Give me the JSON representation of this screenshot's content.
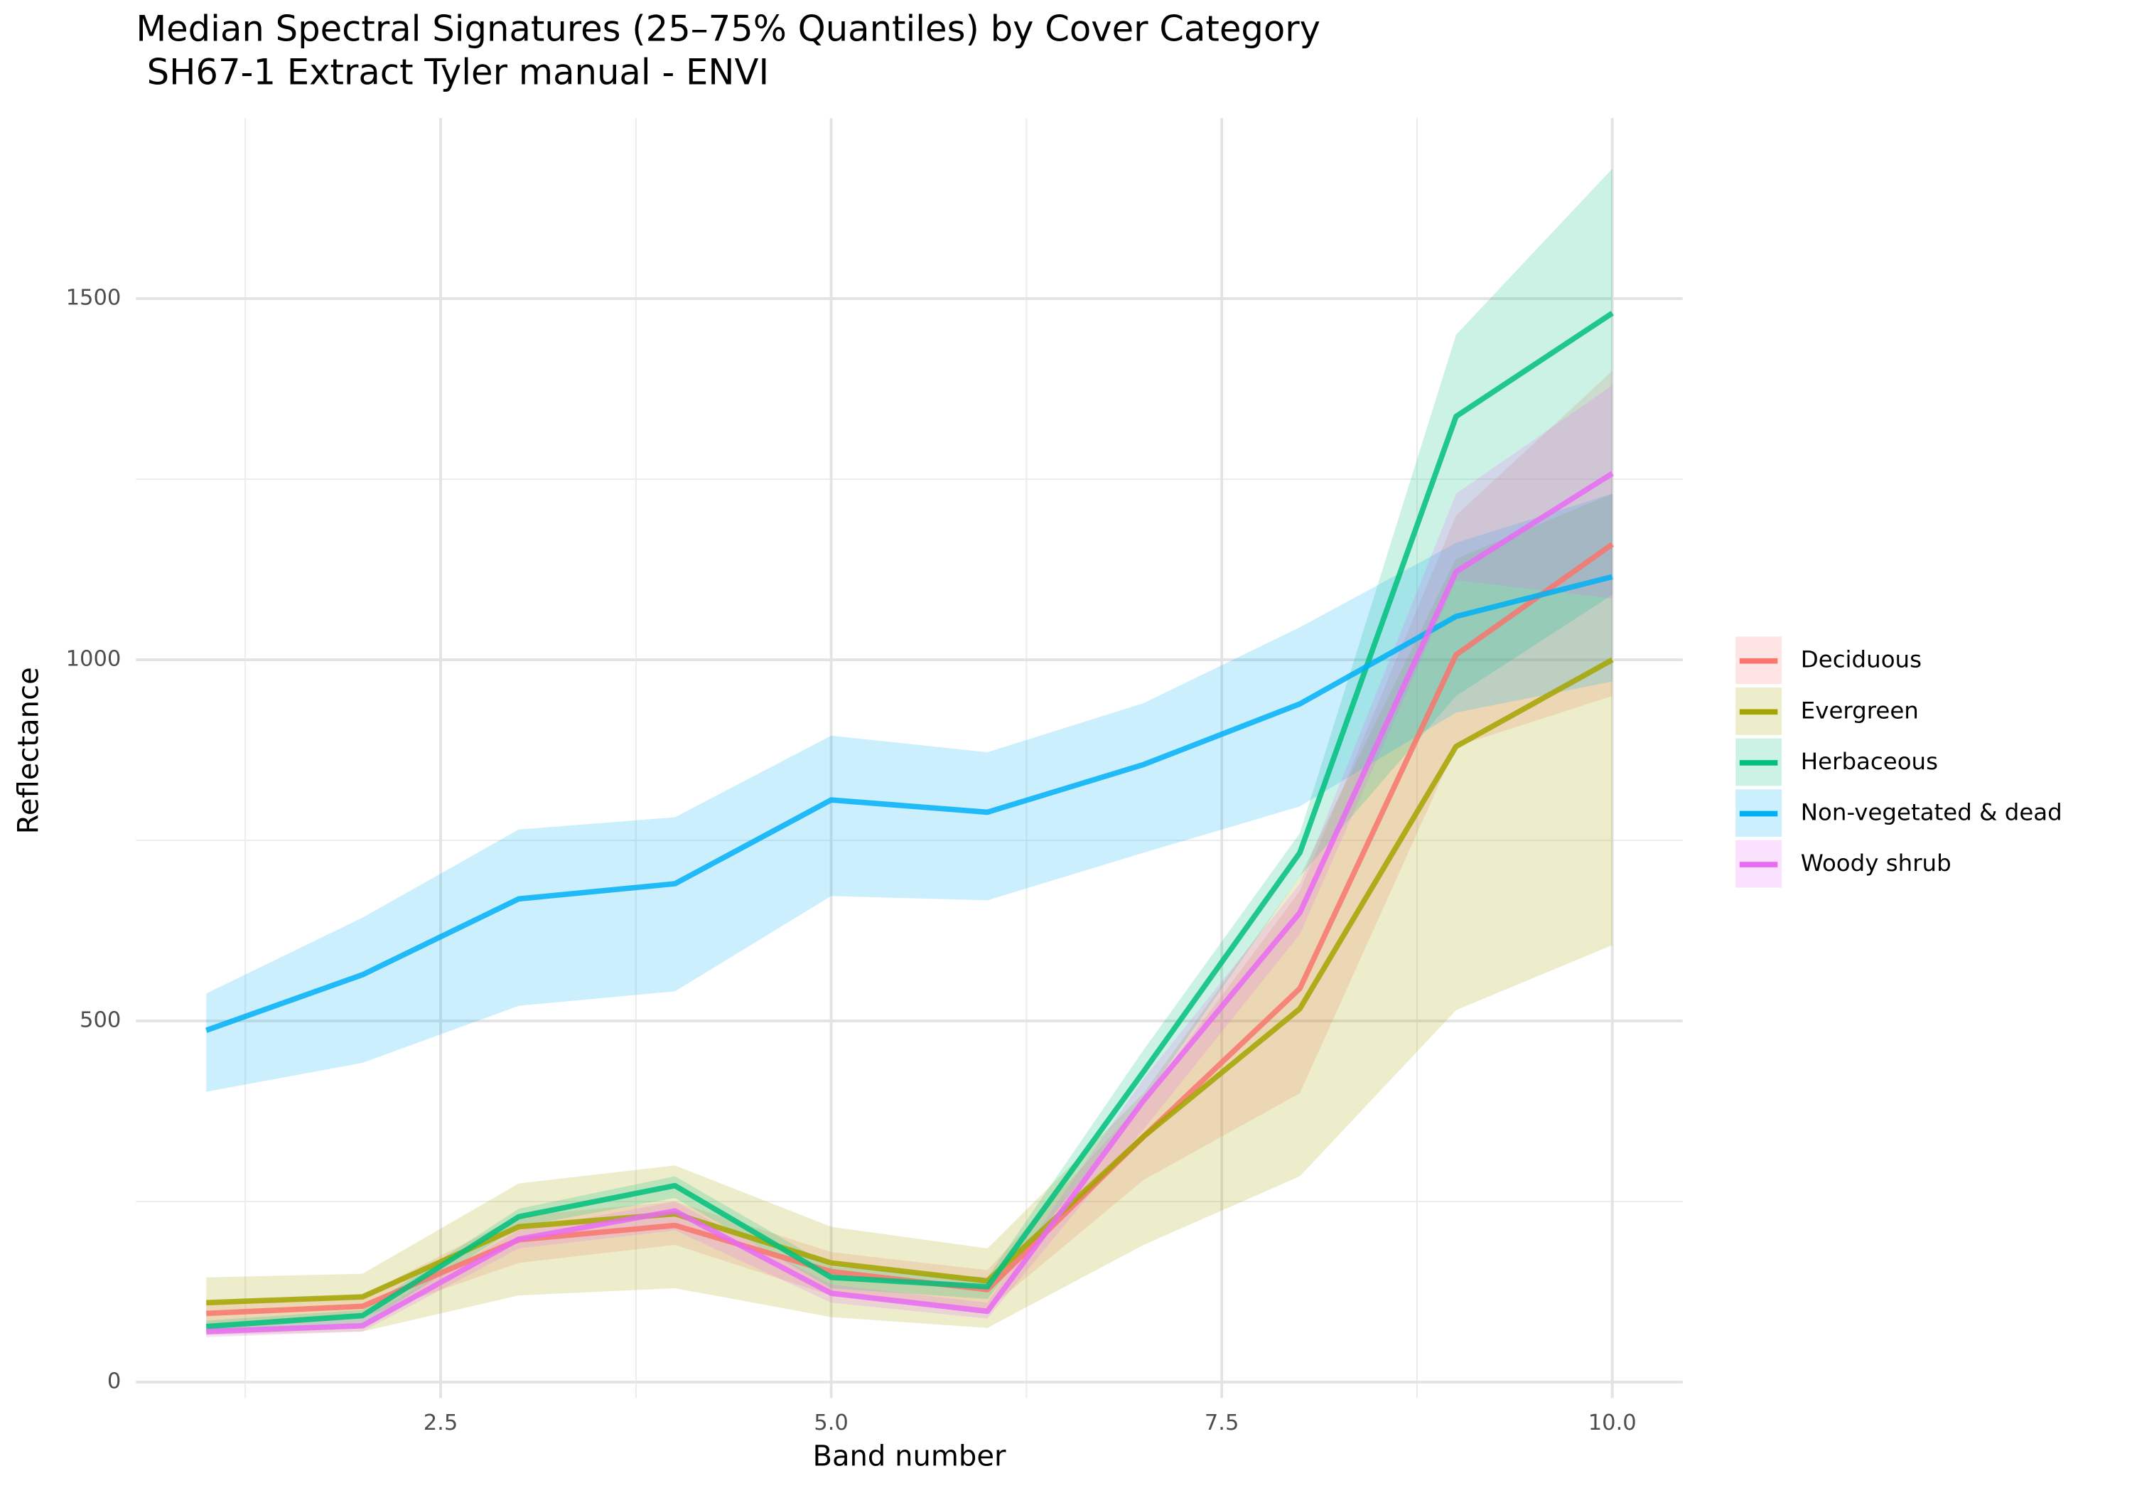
{
  "chart_data": {
    "type": "ribbon-line",
    "title": "Median Spectral Signatures (25–75% Quantiles) by Cover Category",
    "subtitle": "SH67-1 Extract Tyler manual - ENVI",
    "x_label": "Band number",
    "y_label": "Reflectance",
    "x": [
      1,
      2,
      3,
      4,
      5,
      6,
      7,
      8,
      9,
      10
    ],
    "xlim": [
      0.55,
      10.45
    ],
    "ylim": [
      -22,
      1750
    ],
    "xticks": [
      2.5,
      {
        "value": 5,
        "label": "5.0"
      },
      7.5,
      {
        "value": 10,
        "label": "10.0"
      }
    ],
    "yticks": [
      0,
      500,
      1000,
      1500
    ],
    "x_minor_ticks": [
      1.25,
      3.75,
      6.25,
      8.75
    ],
    "y_minor_ticks": [
      250,
      750,
      1250
    ],
    "grid": true,
    "legend_position": "right",
    "series": [
      {
        "name": "Deciduous",
        "color": "#F8766D",
        "values": [
          95,
          105,
          197,
          217,
          153,
          128,
          340,
          545,
          1007,
          1160
        ],
        "lower": [
          80,
          90,
          165,
          190,
          120,
          100,
          280,
          400,
          880,
          950
        ],
        "upper": [
          110,
          120,
          230,
          250,
          180,
          155,
          390,
          680,
          1200,
          1400
        ]
      },
      {
        "name": "Evergreen",
        "color": "#A3A500",
        "values": [
          110,
          118,
          215,
          233,
          165,
          140,
          340,
          517,
          880,
          1000
        ],
        "lower": [
          65,
          70,
          120,
          130,
          90,
          75,
          190,
          285,
          515,
          605
        ],
        "upper": [
          145,
          150,
          275,
          300,
          215,
          185,
          400,
          700,
          1140,
          1230
        ]
      },
      {
        "name": "Herbaceous",
        "color": "#00BF7D",
        "values": [
          77,
          92,
          229,
          272,
          145,
          132,
          430,
          733,
          1337,
          1480
        ],
        "lower": [
          70,
          80,
          215,
          255,
          130,
          115,
          390,
          700,
          950,
          1090
        ],
        "upper": [
          85,
          100,
          240,
          285,
          160,
          145,
          460,
          760,
          1450,
          1680
        ]
      },
      {
        "name": "Non-vegetated & dead",
        "color": "#00B0F6",
        "values": [
          487,
          564,
          669,
          690,
          806,
          789,
          855,
          939,
          1060,
          1115
        ],
        "lower": [
          402,
          442,
          521,
          541,
          673,
          667,
          733,
          797,
          927,
          970
        ],
        "upper": [
          538,
          643,
          765,
          782,
          895,
          872,
          940,
          1045,
          1162,
          1230
        ]
      },
      {
        "name": "Woody shrub",
        "color": "#E76BF3",
        "values": [
          70,
          78,
          198,
          237,
          123,
          98,
          390,
          650,
          1122,
          1258
        ],
        "lower": [
          62,
          70,
          185,
          210,
          110,
          88,
          350,
          620,
          1110,
          1085
        ],
        "upper": [
          80,
          88,
          210,
          250,
          135,
          110,
          420,
          690,
          1230,
          1380
        ]
      }
    ]
  }
}
